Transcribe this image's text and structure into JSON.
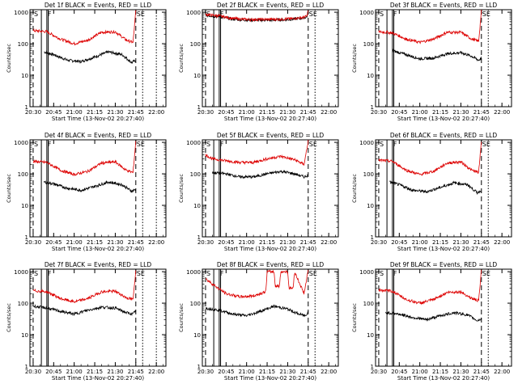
{
  "colors": {
    "events": "#000000",
    "lld": "#dd0000",
    "axes": "#000000",
    "background": "#ffffff"
  },
  "chart_data": [
    {
      "type": "line",
      "title": "Det 1f BLACK = Events, RED = LLD",
      "xlabel": "Start Time (13-Nov-02 20:27:40)",
      "ylabel": "Counts/sec",
      "xticks": [
        "20:30",
        "20:45",
        "21:00",
        "21:15",
        "21:30",
        "21:45",
        "22:00"
      ],
      "yticks": [
        "1",
        "10",
        "100",
        "1000"
      ],
      "xlim": [
        "20:27:40",
        "22:07:00"
      ],
      "ylim": [
        1,
        1200
      ],
      "yscale": "log",
      "markers": [
        {
          "label": "S",
          "time": "20:30:00",
          "style": "dashed"
        },
        {
          "label": "F",
          "time": "20:40:00",
          "style": "solid"
        },
        {
          "label": "SE",
          "time": "21:45:00",
          "style": "dashed"
        }
      ],
      "solid_lines": [
        "20:36:00",
        "20:41:00"
      ],
      "dotted_lines": [
        "21:50:00",
        "22:00:00"
      ],
      "series": [
        {
          "name": "Events",
          "color": "#000000",
          "x": [
            "20:38:00",
            "20:45:00",
            "20:55:00",
            "21:05:00",
            "21:15:00",
            "21:25:00",
            "21:35:00",
            "21:42:00",
            "21:45:00"
          ],
          "values": [
            55,
            45,
            30,
            27,
            38,
            55,
            45,
            25,
            30
          ]
        },
        {
          "name": "LLD",
          "color": "#dd0000",
          "x": [
            "20:30:00",
            "20:40:00",
            "20:50:00",
            "21:00:00",
            "21:10:00",
            "21:20:00",
            "21:30:00",
            "21:38:00",
            "21:43:00",
            "21:45:00"
          ],
          "values": [
            260,
            240,
            140,
            100,
            130,
            230,
            240,
            130,
            110,
            1100
          ]
        }
      ]
    },
    {
      "type": "line",
      "title": "Det 2f BLACK = Events, RED = LLD",
      "xlabel": "Start Time (13-Nov-02 20:27:40)",
      "ylabel": "Counts/sec",
      "xticks": [
        "20:30",
        "20:45",
        "21:00",
        "21:15",
        "21:30",
        "21:45",
        "22:00"
      ],
      "yticks": [
        "1",
        "10",
        "100",
        "1000"
      ],
      "xlim": [
        "20:27:40",
        "22:07:00"
      ],
      "ylim": [
        1,
        1200
      ],
      "yscale": "log",
      "markers": [
        {
          "label": "S",
          "time": "20:30:00",
          "style": "dashed"
        },
        {
          "label": "F",
          "time": "20:40:00",
          "style": "solid"
        },
        {
          "label": "SE",
          "time": "21:45:00",
          "style": "dashed"
        }
      ],
      "solid_lines": [
        "20:36:00",
        "20:41:00"
      ],
      "dotted_lines": [
        "21:50:00"
      ],
      "series": [
        {
          "name": "Events",
          "color": "#000000",
          "x": [
            "20:30:00",
            "20:40:00",
            "20:50:00",
            "21:00:00",
            "21:15:00",
            "21:30:00",
            "21:40:00",
            "21:44:00",
            "21:45:00"
          ],
          "values": [
            800,
            720,
            600,
            560,
            560,
            580,
            640,
            700,
            1100
          ]
        },
        {
          "name": "LLD",
          "color": "#dd0000",
          "x": [
            "20:30:00",
            "20:40:00",
            "20:50:00",
            "21:00:00",
            "21:15:00",
            "21:30:00",
            "21:40:00",
            "21:44:00",
            "21:45:00"
          ],
          "values": [
            840,
            760,
            630,
            590,
            590,
            610,
            670,
            730,
            1150
          ]
        }
      ]
    },
    {
      "type": "line",
      "title": "Det 3f BLACK = Events, RED = LLD",
      "xlabel": "Start Time (13-Nov-02 20:27:40)",
      "ylabel": "Counts/sec",
      "xticks": [
        "20:30",
        "20:45",
        "21:00",
        "21:15",
        "21:30",
        "21:45",
        "22:00"
      ],
      "yticks": [
        "1",
        "10",
        "100",
        "1000"
      ],
      "xlim": [
        "20:27:40",
        "22:07:00"
      ],
      "ylim": [
        1,
        1200
      ],
      "yscale": "log",
      "markers": [
        {
          "label": "S",
          "time": "20:30:00",
          "style": "dashed"
        },
        {
          "label": "F",
          "time": "20:40:00",
          "style": "solid"
        },
        {
          "label": "SE",
          "time": "21:45:00",
          "style": "dashed"
        }
      ],
      "solid_lines": [
        "20:36:00",
        "20:41:00"
      ],
      "dotted_lines": [
        "21:50:00"
      ],
      "series": [
        {
          "name": "Events",
          "color": "#000000",
          "x": [
            "20:40:00",
            "20:50:00",
            "21:00:00",
            "21:10:00",
            "21:20:00",
            "21:30:00",
            "21:38:00",
            "21:43:00",
            "21:45:00"
          ],
          "values": [
            60,
            45,
            33,
            35,
            48,
            52,
            40,
            30,
            35
          ]
        },
        {
          "name": "LLD",
          "color": "#dd0000",
          "x": [
            "20:30:00",
            "20:40:00",
            "20:50:00",
            "21:00:00",
            "21:10:00",
            "21:20:00",
            "21:30:00",
            "21:38:00",
            "21:43:00",
            "21:45:00"
          ],
          "values": [
            240,
            220,
            140,
            110,
            140,
            230,
            230,
            140,
            120,
            1100
          ]
        }
      ]
    },
    {
      "type": "line",
      "title": "Det 4f BLACK = Events, RED = LLD",
      "xlabel": "Start Time (13-Nov-02 20:27:40)",
      "ylabel": "Counts/sec",
      "xticks": [
        "20:30",
        "20:45",
        "21:00",
        "21:15",
        "21:30",
        "21:45",
        "22:00"
      ],
      "yticks": [
        "1",
        "10",
        "100",
        "1000"
      ],
      "xlim": [
        "20:27:40",
        "22:07:00"
      ],
      "ylim": [
        1,
        1200
      ],
      "yscale": "log",
      "markers": [
        {
          "label": "S",
          "time": "20:30:00",
          "style": "dashed"
        },
        {
          "label": "F",
          "time": "20:40:00",
          "style": "solid"
        },
        {
          "label": "SE",
          "time": "21:45:00",
          "style": "dashed"
        }
      ],
      "solid_lines": [
        "20:36:00",
        "20:41:00"
      ],
      "dotted_lines": [
        "21:50:00",
        "22:00:00"
      ],
      "series": [
        {
          "name": "Events",
          "color": "#000000",
          "x": [
            "20:38:00",
            "20:45:00",
            "20:55:00",
            "21:05:00",
            "21:15:00",
            "21:25:00",
            "21:35:00",
            "21:42:00",
            "21:45:00"
          ],
          "values": [
            55,
            48,
            35,
            30,
            40,
            55,
            45,
            28,
            32
          ]
        },
        {
          "name": "LLD",
          "color": "#dd0000",
          "x": [
            "20:30:00",
            "20:40:00",
            "20:50:00",
            "21:00:00",
            "21:10:00",
            "21:20:00",
            "21:30:00",
            "21:38:00",
            "21:43:00",
            "21:45:00"
          ],
          "values": [
            250,
            230,
            130,
            95,
            120,
            220,
            240,
            130,
            110,
            1100
          ]
        }
      ]
    },
    {
      "type": "line",
      "title": "Det 5f BLACK = Events, RED = LLD",
      "xlabel": "Start Time (13-Nov-02 20:27:40)",
      "ylabel": "Counts/sec",
      "xticks": [
        "20:30",
        "20:45",
        "21:00",
        "21:15",
        "21:30",
        "21:45",
        "22:00"
      ],
      "yticks": [
        "1",
        "10",
        "100",
        "1000"
      ],
      "xlim": [
        "20:27:40",
        "22:07:00"
      ],
      "ylim": [
        1,
        1200
      ],
      "yscale": "log",
      "markers": [
        {
          "label": "S",
          "time": "20:30:00",
          "style": "dashed"
        },
        {
          "label": "F",
          "time": "20:40:00",
          "style": "solid"
        },
        {
          "label": "SE",
          "time": "21:45:00",
          "style": "dashed"
        }
      ],
      "solid_lines": [
        "20:36:00",
        "20:41:00"
      ],
      "dotted_lines": [
        "21:50:00"
      ],
      "series": [
        {
          "name": "Events",
          "color": "#000000",
          "x": [
            "20:35:00",
            "20:45:00",
            "20:55:00",
            "21:05:00",
            "21:15:00",
            "21:25:00",
            "21:35:00",
            "21:42:00",
            "21:45:00"
          ],
          "values": [
            110,
            100,
            80,
            80,
            100,
            120,
            100,
            80,
            90
          ]
        },
        {
          "name": "LLD",
          "color": "#dd0000",
          "x": [
            "20:30:00",
            "20:35:00",
            "20:45:00",
            "20:55:00",
            "21:05:00",
            "21:15:00",
            "21:25:00",
            "21:35:00",
            "21:42:00",
            "21:45:00"
          ],
          "values": [
            400,
            300,
            260,
            230,
            230,
            300,
            360,
            280,
            200,
            1100
          ]
        }
      ]
    },
    {
      "type": "line",
      "title": "Det 6f BLACK = Events, RED = LLD",
      "xlabel": "Start Time (13-Nov-02 20:27:40)",
      "ylabel": "Counts/sec",
      "xticks": [
        "20:30",
        "20:45",
        "21:00",
        "21:15",
        "21:30",
        "21:45",
        "22:00"
      ],
      "yticks": [
        "1",
        "10",
        "100",
        "1000"
      ],
      "xlim": [
        "20:27:40",
        "22:07:00"
      ],
      "ylim": [
        1,
        1200
      ],
      "yscale": "log",
      "markers": [
        {
          "label": "S",
          "time": "20:30:00",
          "style": "dashed"
        },
        {
          "label": "F",
          "time": "20:40:00",
          "style": "solid"
        },
        {
          "label": "SE",
          "time": "21:45:00",
          "style": "dashed"
        }
      ],
      "solid_lines": [
        "20:36:00",
        "20:41:00"
      ],
      "dotted_lines": [
        "21:50:00"
      ],
      "series": [
        {
          "name": "Events",
          "color": "#000000",
          "x": [
            "20:38:00",
            "20:45:00",
            "20:55:00",
            "21:05:00",
            "21:15:00",
            "21:25:00",
            "21:35:00",
            "21:42:00",
            "21:45:00"
          ],
          "values": [
            55,
            45,
            30,
            27,
            37,
            52,
            45,
            25,
            30
          ]
        },
        {
          "name": "LLD",
          "color": "#dd0000",
          "x": [
            "20:30:00",
            "20:40:00",
            "20:50:00",
            "21:00:00",
            "21:10:00",
            "21:20:00",
            "21:30:00",
            "21:38:00",
            "21:43:00",
            "21:45:00"
          ],
          "values": [
            270,
            250,
            130,
            95,
            120,
            220,
            240,
            130,
            110,
            1100
          ]
        }
      ]
    },
    {
      "type": "line",
      "title": "Det 7f BLACK = Events, RED = LLD",
      "xlabel": "Start Time (13-Nov-02 20:27:40)",
      "ylabel": "Counts/sec",
      "xticks": [
        "20:30",
        "20:45",
        "21:00",
        "21:15",
        "21:30",
        "21:45",
        "22:00"
      ],
      "yticks": [
        "1",
        "10",
        "100",
        "1000"
      ],
      "xlim": [
        "20:27:40",
        "22:07:00"
      ],
      "ylim": [
        1,
        1200
      ],
      "yscale": "log",
      "markers": [
        {
          "label": "S",
          "time": "20:30:00",
          "style": "dashed"
        },
        {
          "label": "F",
          "time": "20:40:00",
          "style": "solid"
        },
        {
          "label": "SE",
          "time": "21:45:00",
          "style": "dashed"
        }
      ],
      "solid_lines": [
        "20:36:00",
        "20:41:00"
      ],
      "dotted_lines": [
        "21:50:00",
        "22:00:00"
      ],
      "series": [
        {
          "name": "Events",
          "color": "#000000",
          "x": [
            "20:30:00",
            "20:40:00",
            "20:50:00",
            "21:00:00",
            "21:10:00",
            "21:20:00",
            "21:30:00",
            "21:38:00",
            "21:43:00",
            "21:45:00"
          ],
          "values": [
            80,
            70,
            55,
            45,
            60,
            75,
            70,
            50,
            45,
            60
          ]
        },
        {
          "name": "LLD",
          "color": "#dd0000",
          "x": [
            "20:30:00",
            "20:40:00",
            "20:50:00",
            "21:00:00",
            "21:10:00",
            "21:20:00",
            "21:30:00",
            "21:38:00",
            "21:43:00",
            "21:45:00"
          ],
          "values": [
            250,
            230,
            140,
            110,
            140,
            230,
            240,
            150,
            130,
            1100
          ]
        }
      ]
    },
    {
      "type": "line",
      "title": "Det 8f BLACK = Events, RED = LLD",
      "xlabel": "Start Time (13-Nov-02 20:27:40)",
      "ylabel": "Counts/sec",
      "xticks": [
        "20:30",
        "20:45",
        "21:00",
        "21:15",
        "21:30",
        "21:45",
        "22:00"
      ],
      "yticks": [
        "1",
        "10",
        "100",
        "1000"
      ],
      "xlim": [
        "20:27:40",
        "22:07:00"
      ],
      "ylim": [
        1,
        1200
      ],
      "yscale": "log",
      "markers": [
        {
          "label": "S",
          "time": "20:30:00",
          "style": "dashed"
        },
        {
          "label": "F",
          "time": "20:40:00",
          "style": "solid"
        },
        {
          "label": "SE",
          "time": "21:45:00",
          "style": "dashed"
        }
      ],
      "solid_lines": [
        "20:36:00",
        "20:41:00"
      ],
      "dotted_lines": [
        "21:50:00"
      ],
      "series": [
        {
          "name": "Events",
          "color": "#000000",
          "x": [
            "20:30:00",
            "20:40:00",
            "20:50:00",
            "21:00:00",
            "21:10:00",
            "21:20:00",
            "21:30:00",
            "21:38:00",
            "21:43:00",
            "21:45:00"
          ],
          "values": [
            70,
            60,
            45,
            40,
            55,
            80,
            65,
            45,
            40,
            55
          ]
        },
        {
          "name": "LLD",
          "color": "#dd0000",
          "x": [
            "20:30:00",
            "20:37:00",
            "20:45:00",
            "20:55:00",
            "21:05:00",
            "21:14:00",
            "21:15:00",
            "21:20:00",
            "21:21:00",
            "21:24:00",
            "21:25:00",
            "21:30:00",
            "21:31:00",
            "21:34:00",
            "21:35:00",
            "21:42:00",
            "21:45:00"
          ],
          "values": [
            600,
            350,
            200,
            160,
            170,
            230,
            1000,
            1000,
            350,
            350,
            1000,
            1000,
            300,
            300,
            1000,
            200,
            1100
          ]
        }
      ]
    },
    {
      "type": "line",
      "title": "Det 9f BLACK = Events, RED = LLD",
      "xlabel": "Start Time (13-Nov-02 20:27:40)",
      "ylabel": "Counts/sec",
      "xticks": [
        "20:30",
        "20:45",
        "21:00",
        "21:15",
        "21:30",
        "21:45",
        "22:00"
      ],
      "yticks": [
        "1",
        "10",
        "100",
        "1000"
      ],
      "xlim": [
        "20:27:40",
        "22:07:00"
      ],
      "ylim": [
        1,
        1200
      ],
      "yscale": "log",
      "markers": [
        {
          "label": "S",
          "time": "20:30:00",
          "style": "dashed"
        },
        {
          "label": "F",
          "time": "20:40:00",
          "style": "solid"
        },
        {
          "label": "SE",
          "time": "21:45:00",
          "style": "dashed"
        }
      ],
      "solid_lines": [
        "20:36:00",
        "20:41:00"
      ],
      "dotted_lines": [
        "21:50:00"
      ],
      "series": [
        {
          "name": "Events",
          "color": "#000000",
          "x": [
            "20:35:00",
            "20:45:00",
            "20:55:00",
            "21:05:00",
            "21:15:00",
            "21:25:00",
            "21:35:00",
            "21:42:00",
            "21:45:00"
          ],
          "values": [
            50,
            45,
            35,
            30,
            40,
            50,
            42,
            28,
            32
          ]
        },
        {
          "name": "LLD",
          "color": "#dd0000",
          "x": [
            "20:30:00",
            "20:40:00",
            "20:50:00",
            "21:00:00",
            "21:10:00",
            "21:20:00",
            "21:30:00",
            "21:38:00",
            "21:43:00",
            "21:45:00"
          ],
          "values": [
            260,
            240,
            130,
            100,
            130,
            220,
            230,
            140,
            120,
            1100
          ]
        }
      ]
    }
  ]
}
